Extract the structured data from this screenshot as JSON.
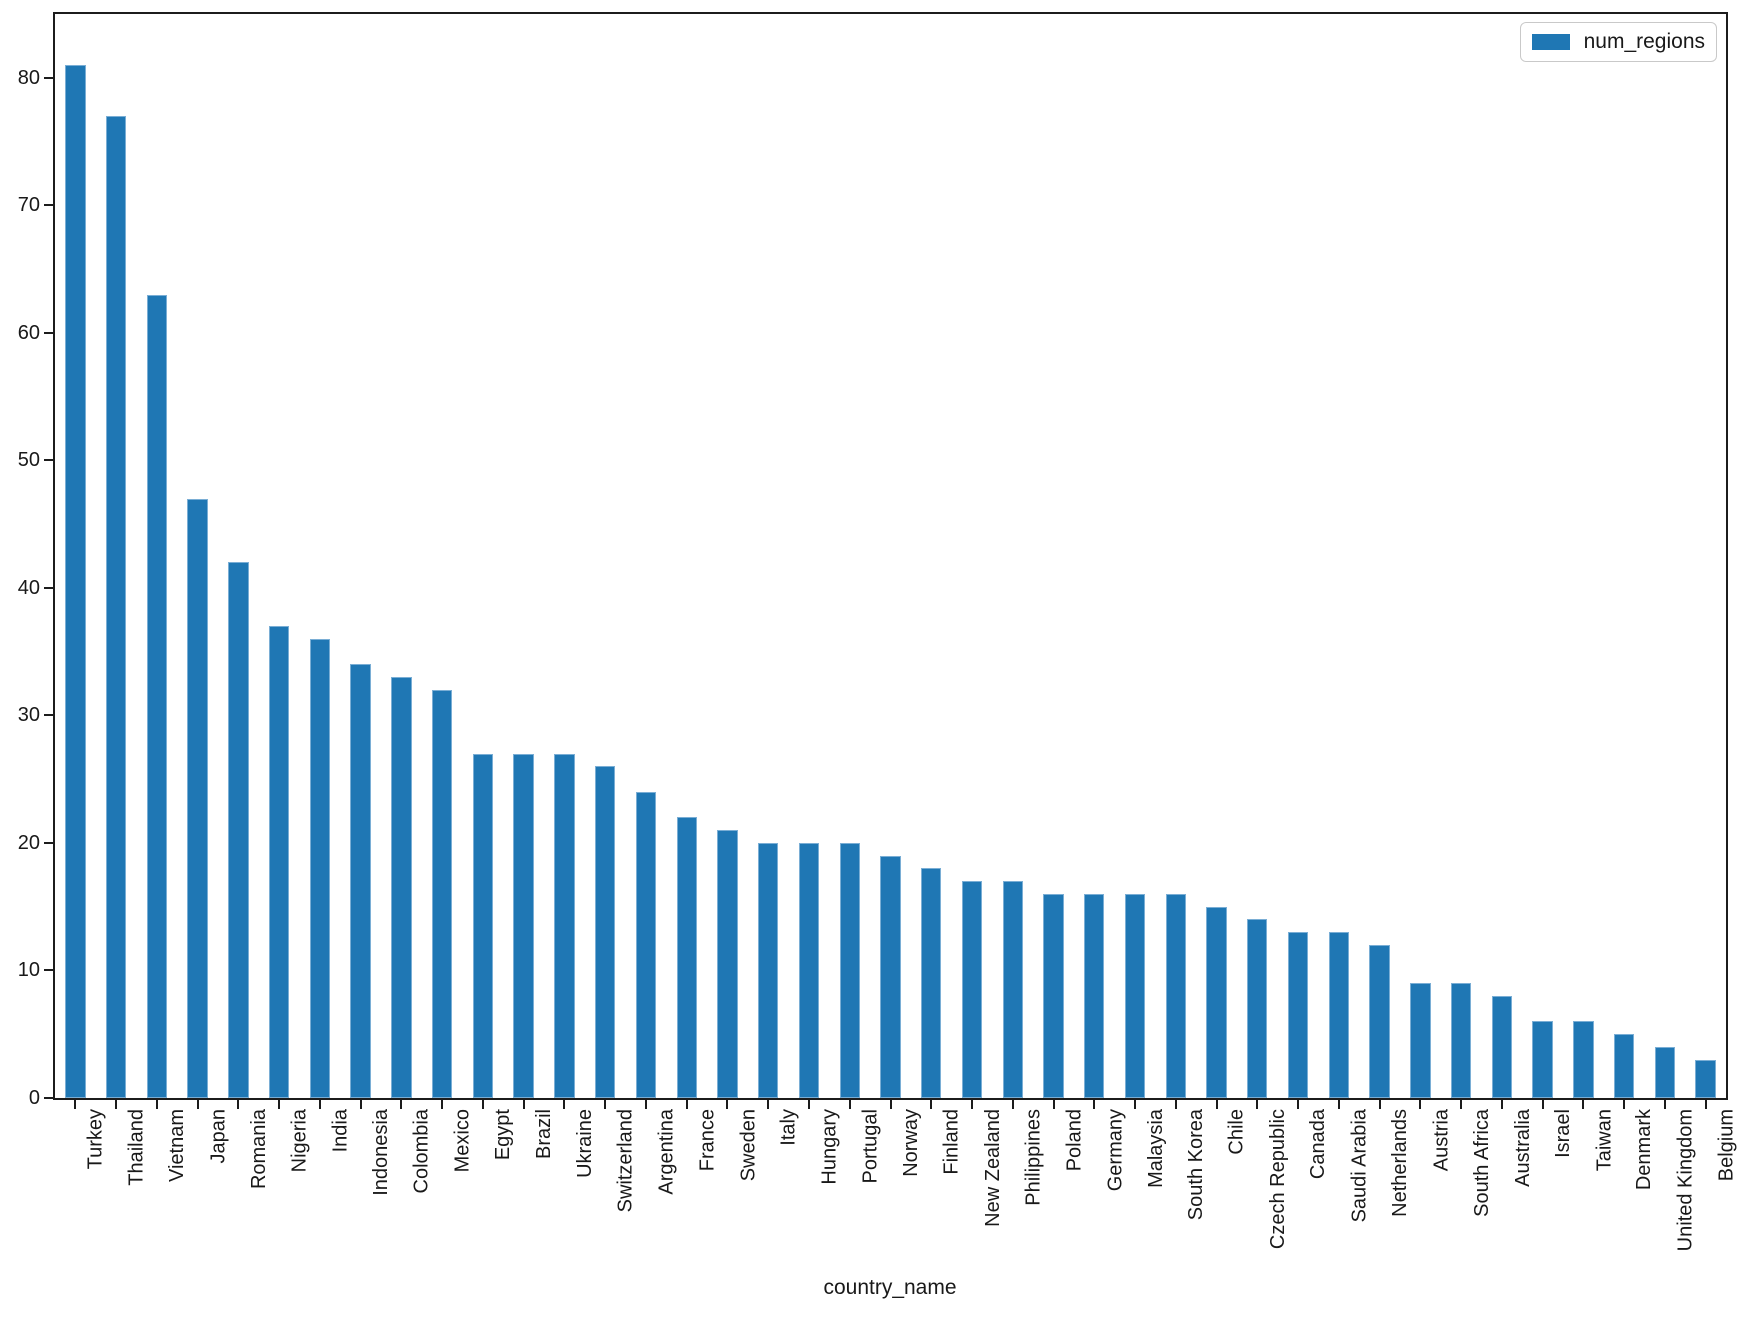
{
  "chart_data": {
    "type": "bar",
    "title": "",
    "xlabel": "country_name",
    "ylabel": "",
    "grid": false,
    "legend_position": "upper right",
    "legend_label": "num_regions",
    "bar_color": "#1f77b4",
    "bar_edge_color": "#c4dcf0",
    "ylim": [
      0,
      85
    ],
    "yticks": [
      0,
      10,
      20,
      30,
      40,
      50,
      60,
      70,
      80
    ],
    "categories": [
      "Turkey",
      "Thailand",
      "Vietnam",
      "Japan",
      "Romania",
      "Nigeria",
      "India",
      "Indonesia",
      "Colombia",
      "Mexico",
      "Egypt",
      "Brazil",
      "Ukraine",
      "Switzerland",
      "Argentina",
      "France",
      "Sweden",
      "Italy",
      "Hungary",
      "Portugal",
      "Norway",
      "Finland",
      "New Zealand",
      "Philippines",
      "Poland",
      "Germany",
      "Malaysia",
      "South Korea",
      "Chile",
      "Czech Republic",
      "Canada",
      "Saudi Arabia",
      "Netherlands",
      "Austria",
      "South Africa",
      "Australia",
      "Israel",
      "Taiwan",
      "Denmark",
      "United Kingdom",
      "Belgium"
    ],
    "series": [
      {
        "name": "num_regions",
        "values": [
          81,
          77,
          63,
          47,
          42,
          37,
          36,
          34,
          33,
          32,
          27,
          27,
          27,
          26,
          24,
          22,
          21,
          20,
          20,
          20,
          19,
          18,
          17,
          17,
          16,
          16,
          16,
          16,
          15,
          14,
          13,
          13,
          12,
          9,
          9,
          8,
          6,
          6,
          5,
          4,
          3
        ]
      }
    ]
  }
}
